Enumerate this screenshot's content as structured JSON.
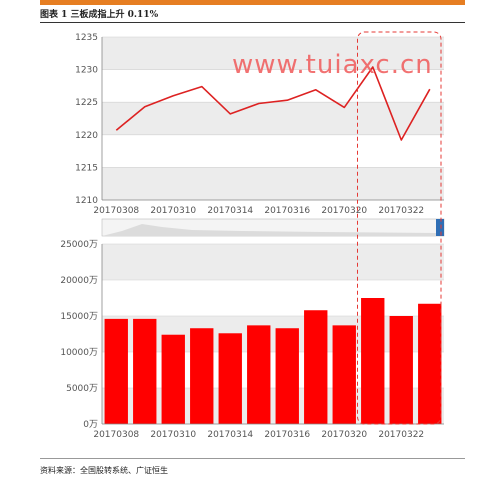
{
  "header": {
    "figure_title": "图表 1 三板成指上升 0.11%",
    "accent_color": "#e67e22"
  },
  "watermark": "www.tuiaxc.cn",
  "footer": {
    "source": "资料来源：全国股转系统、广证恒生"
  },
  "chart_data": [
    {
      "type": "line",
      "x_labels": [
        "20170308",
        "20170310",
        "20170314",
        "20170316",
        "20170320",
        "20170322"
      ],
      "y_ticks": [
        "1235",
        "1230",
        "1225",
        "1220",
        "1215",
        "1210"
      ],
      "ylim": [
        1210,
        1235
      ],
      "series": [
        {
          "values": [
            1220.7,
            1224.3,
            1226.0,
            1227.4,
            1223.2,
            1224.8,
            1225.3,
            1226.9,
            1224.2,
            1230.4,
            1219.2,
            1227.0
          ],
          "color": "#dd2222"
        }
      ],
      "grid": true,
      "band_color": "#ececec",
      "highlight": {
        "from_index": 9,
        "to_index": 11,
        "style": "dashed",
        "color": "#e53935"
      }
    },
    {
      "type": "bar",
      "x_labels": [
        "20170308",
        "20170310",
        "20170314",
        "20170316",
        "20170320",
        "20170322"
      ],
      "y_ticks": [
        "25000万",
        "20000万",
        "15000万",
        "10000万",
        "5000万",
        "0万"
      ],
      "ylim": [
        0,
        25000
      ],
      "unit": "万",
      "series": [
        {
          "values": [
            14600,
            14600,
            12400,
            13300,
            12600,
            13700,
            13300,
            15800,
            13700,
            17500,
            15000,
            16700
          ],
          "color": "#ff0000"
        }
      ],
      "grid": true,
      "band_color": "#ececec"
    }
  ]
}
